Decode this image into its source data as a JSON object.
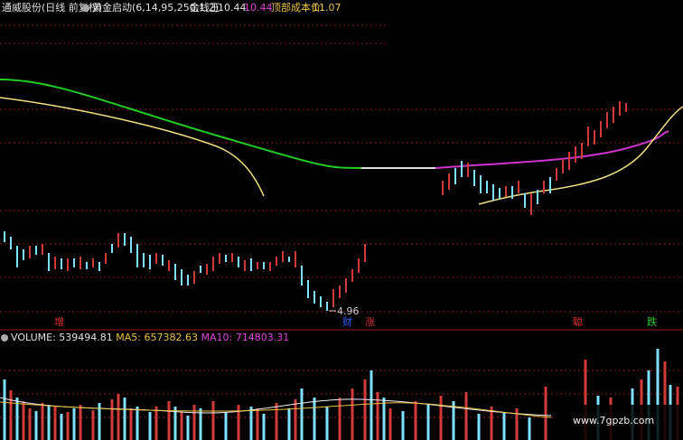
{
  "header": {
    "title": "通威股份(日线 前复权)",
    "indicator": "黄金启动(6,14,95,250,1,2)",
    "golden_line_label": "金线王:",
    "golden_line_value": 10.44,
    "golden_line_value2": 10.44,
    "top_cost_label": "顶部成本价:",
    "top_cost_value": 11.07
  },
  "annotations": {
    "low_price": "4.96",
    "signals": [
      "增",
      "财",
      "涨",
      "聪",
      "跌"
    ]
  },
  "volume": {
    "label": "VOLUME:",
    "value": 539494.81,
    "ma5_label": "MA5:",
    "ma5_value": 657382.63,
    "ma10_label": "MA10:",
    "ma10_value": 714803.31
  },
  "watermark": "www.7gpzb.com"
}
